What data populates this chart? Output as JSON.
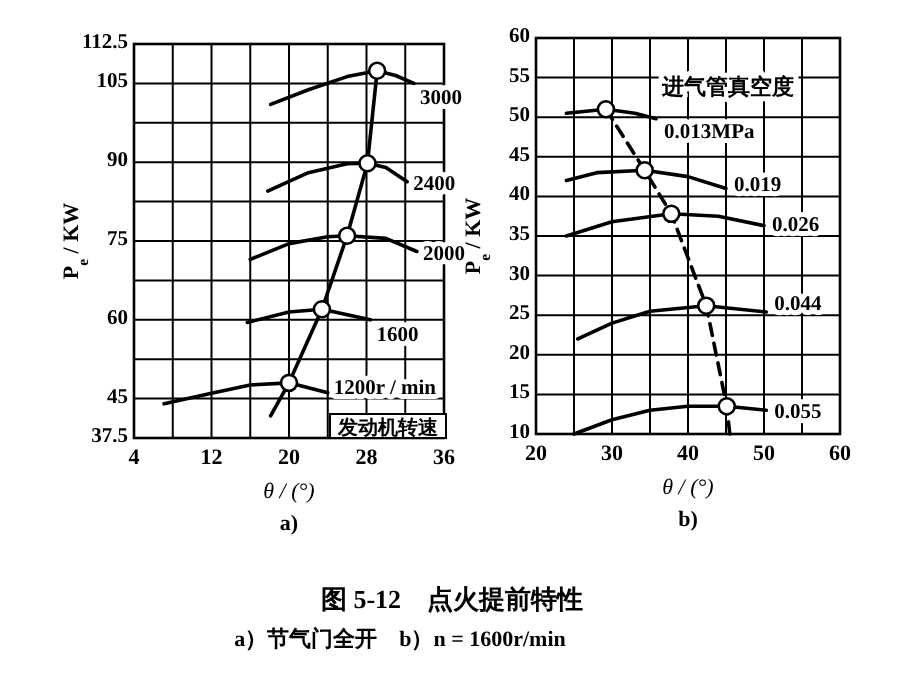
{
  "chart_data": [
    {
      "type": "line",
      "subtitle": "a)",
      "xlabel": "θ / (°)",
      "ylabel": "P$_{e}$ / KW",
      "xlim": [
        4,
        36
      ],
      "ylim": [
        37.5,
        112.5
      ],
      "xticks": [
        4,
        {
          "value": 8,
          "label": null
        },
        12,
        {
          "value": 16,
          "label": null
        },
        20,
        {
          "value": 24,
          "label": null
        },
        28,
        {
          "value": 32,
          "label": null
        },
        36
      ],
      "yticks": [
        37.5,
        45,
        {
          "value": 52.5,
          "label": null
        },
        60,
        {
          "value": 67.5,
          "label": null
        },
        75,
        {
          "value": 82.5,
          "label": null
        },
        90,
        {
          "value": 97.5,
          "label": null
        },
        105,
        112.5
      ],
      "grid": true,
      "series": [
        {
          "name": "1200r / min",
          "color": "#000000",
          "x": [
            7.1,
            12,
            16,
            20,
            24
          ],
          "values": [
            44,
            46,
            47.6,
            48,
            46.1
          ]
        },
        {
          "name": "1600",
          "color": "#000000",
          "x": [
            15.7,
            20,
            23.4,
            28.4
          ],
          "values": [
            59.5,
            61.5,
            62,
            60
          ]
        },
        {
          "name": "2000",
          "color": "#000000",
          "x": [
            16,
            20,
            24,
            26,
            30,
            33.2
          ],
          "values": [
            71.5,
            74.5,
            75.8,
            76,
            75.5,
            73
          ]
        },
        {
          "name": "2400",
          "color": "#000000",
          "x": [
            17.8,
            22,
            26,
            28.1,
            30,
            32.2
          ],
          "values": [
            84.5,
            88,
            89.7,
            89.8,
            89,
            86.3
          ]
        },
        {
          "name": "3000",
          "color": "#000000",
          "x": [
            18.1,
            22,
            26,
            29.1,
            31,
            32.9
          ],
          "values": [
            101,
            103.8,
            106.3,
            107.4,
            106.5,
            105
          ]
        },
        {
          "color": "#000000",
          "x": [
            18.1,
            20,
            23.4,
            26,
            28.1,
            29.1
          ],
          "values": [
            41.7,
            48,
            62,
            76,
            89.8,
            107.4
          ]
        },
        {
          "type": "scatter",
          "marker": "circle",
          "color": "#ffffff",
          "x": [
            20,
            23.4,
            26,
            28.1,
            29.1
          ],
          "values": [
            48,
            62,
            76,
            89.8,
            107.4
          ]
        }
      ],
      "annotations": [
        "发动机转速",
        "图 5-12　点火提前特性",
        "a）节气门全开　b）n = 1600r/min"
      ]
    },
    {
      "type": "line",
      "subtitle": "b)",
      "xlabel": "θ / (°)",
      "ylabel": "P$_{e}$ / KW",
      "annotations": [
        "进气管真空度"
      ],
      "xlim": [
        20,
        60
      ],
      "ylim": [
        10,
        60
      ],
      "xticks": [
        20,
        {
          "value": 25,
          "label": null
        },
        30,
        {
          "value": 35,
          "label": null
        },
        40,
        {
          "value": 45,
          "label": null
        },
        50,
        {
          "value": 55,
          "label": null
        },
        60
      ],
      "yticks": [
        10,
        15,
        20,
        25,
        30,
        35,
        40,
        45,
        50,
        55,
        60
      ],
      "grid": true,
      "series": [
        {
          "name": "0.055",
          "color": "#000000",
          "x": [
            25,
            30,
            35,
            40,
            45.1,
            50.3
          ],
          "values": [
            10,
            11.8,
            13,
            13.5,
            13.5,
            13
          ]
        },
        {
          "name": "0.044",
          "color": "#000000",
          "x": [
            25.5,
            30,
            35,
            42.4,
            50.3
          ],
          "values": [
            22,
            24,
            25.5,
            26.2,
            25.4
          ]
        },
        {
          "name": "0.026",
          "color": "#000000",
          "x": [
            24,
            30,
            37.8,
            44,
            50
          ],
          "values": [
            35,
            36.8,
            37.8,
            37.5,
            36.3
          ]
        },
        {
          "name": "0.019",
          "color": "#000000",
          "x": [
            24,
            28,
            34.3,
            40,
            45
          ],
          "values": [
            42,
            43,
            43.3,
            42.5,
            41
          ]
        },
        {
          "name": "0.013MPa",
          "color": "#000000",
          "x": [
            24,
            29.2,
            33,
            35.8
          ],
          "values": [
            50.5,
            51,
            50.5,
            49.8
          ]
        },
        {
          "color": "#000000",
          "line_style": "dashed",
          "x": [
            29.2,
            34.3,
            37.8,
            42.4,
            45.1,
            45.5
          ],
          "values": [
            51,
            43.3,
            37.8,
            26.2,
            13.5,
            10
          ]
        },
        {
          "type": "scatter",
          "marker": "circle",
          "color": "#ffffff",
          "x": [
            29.2,
            34.3,
            37.8,
            42.4,
            45.1
          ],
          "values": [
            51,
            43.3,
            37.8,
            26.2,
            13.5
          ]
        }
      ]
    }
  ]
}
